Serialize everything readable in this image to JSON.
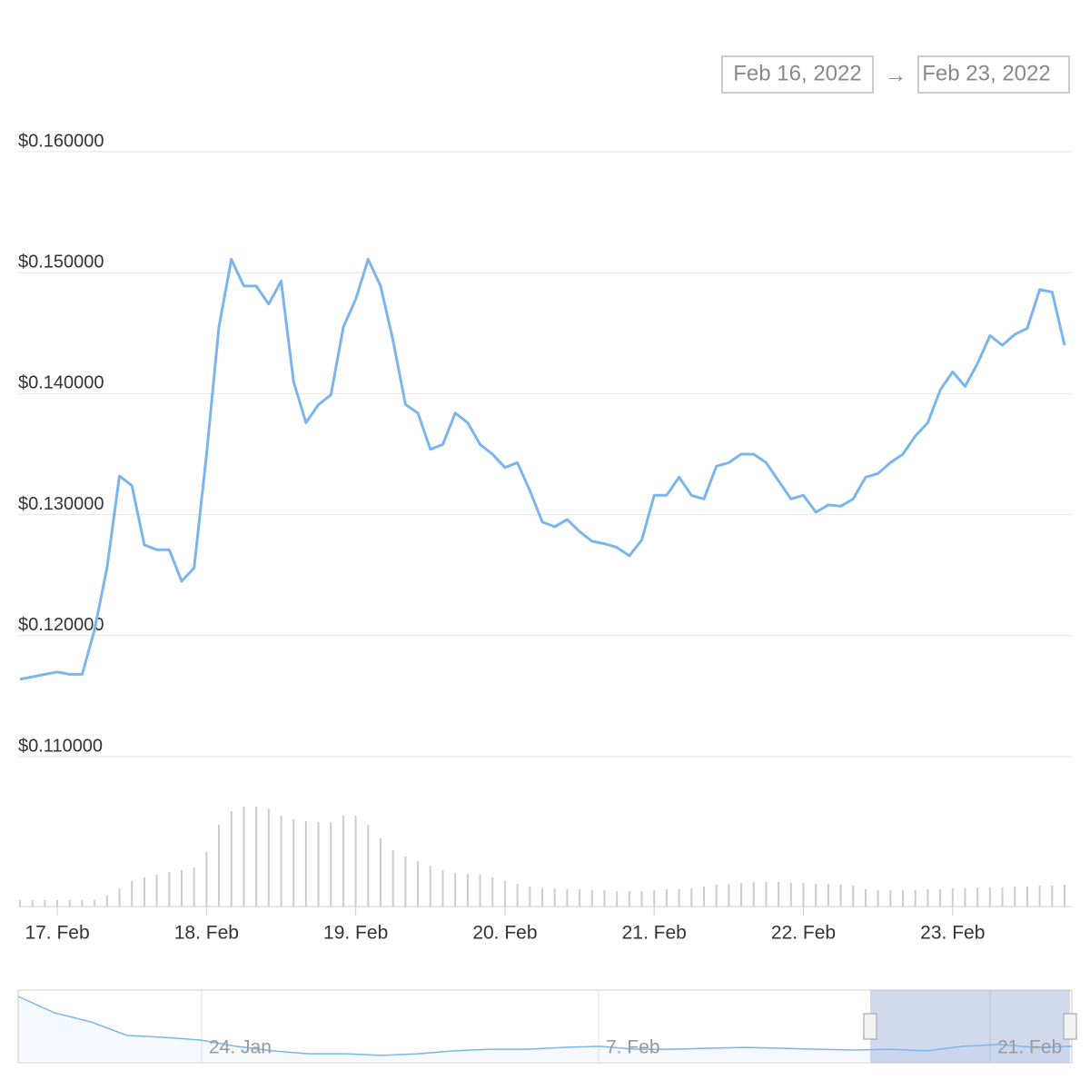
{
  "chart_data": {
    "type": "line",
    "date_range": {
      "from": "Feb 16, 2022",
      "separator": "→",
      "to": "Feb 23, 2022"
    },
    "categories": [
      null,
      null,
      null,
      "17. Feb",
      null,
      null,
      null,
      null,
      null,
      null,
      null,
      null,
      null,
      null,
      null,
      "18. Feb",
      null,
      null,
      null,
      null,
      null,
      null,
      null,
      null,
      null,
      null,
      null,
      "19. Feb",
      null,
      null,
      null,
      null,
      null,
      null,
      null,
      null,
      null,
      null,
      null,
      "20. Feb",
      null,
      null,
      null,
      null,
      null,
      null,
      null,
      null,
      null,
      null,
      null,
      "21. Feb",
      null,
      null,
      null,
      null,
      null,
      null,
      null,
      null,
      null,
      null,
      null,
      "22. Feb",
      null,
      null,
      null,
      null,
      null,
      null,
      null,
      null,
      null,
      null,
      null,
      "23. Feb",
      null,
      null,
      null,
      null,
      null,
      null,
      null,
      null,
      null
    ],
    "series": [
      {
        "color": "#7cb5ec",
        "values": [
          0.1164,
          0.1166,
          0.1168,
          0.117,
          0.1168,
          0.1168,
          0.1205,
          0.1256,
          0.1332,
          0.1324,
          0.1275,
          0.1271,
          0.1271,
          0.1245,
          0.1256,
          0.135,
          0.1455,
          0.1511,
          0.1489,
          0.1489,
          0.1474,
          0.1493,
          0.141,
          0.1376,
          0.1391,
          0.1399,
          0.1455,
          0.1478,
          0.1511,
          0.1489,
          0.1444,
          0.1391,
          0.1384,
          0.1354,
          0.1358,
          0.1384,
          0.1376,
          0.1358,
          0.135,
          0.1339,
          0.1343,
          0.132,
          0.1294,
          0.129,
          0.1296,
          0.1286,
          0.1278,
          0.1276,
          0.1273,
          0.1266,
          0.1279,
          0.1316,
          0.1316,
          0.1331,
          0.1316,
          0.1313,
          0.134,
          0.1343,
          0.135,
          0.135,
          0.1343,
          0.1328,
          0.1313,
          0.1316,
          0.1302,
          0.1308,
          0.1307,
          0.1313,
          0.1331,
          0.1334,
          0.1343,
          0.135,
          0.1365,
          0.1376,
          0.1403,
          0.1418,
          0.1406,
          0.1425,
          0.1448,
          0.144,
          0.1449,
          0.1454,
          0.1486,
          0.1484,
          0.144
        ]
      },
      {
        "color": "#cccccc",
        "kind": "volume",
        "values": [
          7,
          7,
          7,
          7,
          7,
          7,
          7,
          12,
          20,
          28,
          32,
          35,
          38,
          40,
          43,
          60,
          90,
          105,
          110,
          110,
          108,
          100,
          96,
          94,
          93,
          93,
          100,
          100,
          90,
          75,
          62,
          55,
          50,
          45,
          40,
          37,
          36,
          35,
          32,
          28,
          25,
          22,
          20,
          20,
          19,
          19,
          18,
          18,
          17,
          17,
          17,
          18,
          19,
          19,
          20,
          22,
          24,
          25,
          26,
          27,
          27,
          27,
          26,
          26,
          25,
          25,
          24,
          23,
          19,
          18,
          18,
          18,
          18,
          19,
          19,
          20,
          20,
          21,
          21,
          21,
          22,
          22,
          23,
          23,
          24
        ]
      }
    ],
    "ylim": [
      0.11,
      0.16
    ],
    "yticks": [
      {
        "value": 0.11,
        "label": "$0.110000"
      },
      {
        "value": 0.12,
        "label": "$0.120000"
      },
      {
        "value": 0.13,
        "label": "$0.130000"
      },
      {
        "value": 0.14,
        "label": "$0.140000"
      },
      {
        "value": 0.15,
        "label": "$0.150000"
      },
      {
        "value": 0.16,
        "label": "$0.160000"
      }
    ],
    "grid": true,
    "navigator": {
      "labels": [
        "24. Jan",
        "7. Feb",
        "21. Feb"
      ],
      "color": "#7cb5ec",
      "ylim": [
        0.1,
        0.36
      ],
      "values": [
        0.343,
        0.281,
        0.247,
        0.196,
        0.189,
        0.179,
        0.155,
        0.138,
        0.127,
        0.127,
        0.121,
        0.127,
        0.138,
        0.144,
        0.144,
        0.151,
        0.155,
        0.144,
        0.144,
        0.148,
        0.151,
        0.148,
        0.144,
        0.141,
        0.144,
        0.138,
        0.155,
        0.162,
        0.151,
        0.155
      ]
    }
  }
}
